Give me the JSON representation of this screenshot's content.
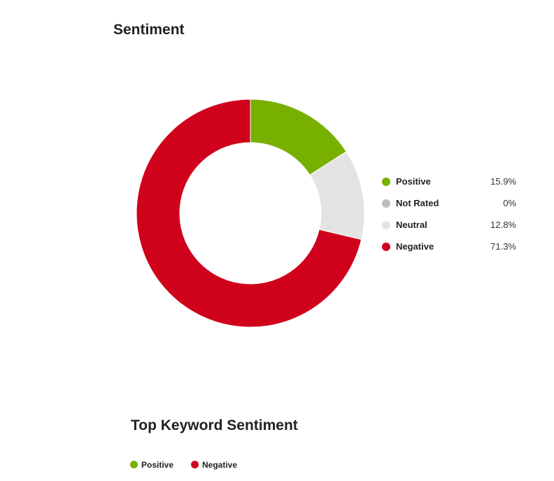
{
  "sentiment_title": "Sentiment",
  "keyword_title": "Top Keyword Sentiment",
  "chart_data": [
    {
      "type": "pie",
      "title": "Sentiment",
      "donut": true,
      "legend_position": "right",
      "slices": [
        {
          "label": "Positive",
          "value": 15.9,
          "display": "15.9%",
          "color": "#78b000"
        },
        {
          "label": "Not Rated",
          "value": 0,
          "display": "0%",
          "color": "#bdbdbd"
        },
        {
          "label": "Neutral",
          "value": 12.8,
          "display": "12.8%",
          "color": "#e3e3e3"
        },
        {
          "label": "Negative",
          "value": 71.3,
          "display": "71.3%",
          "color": "#d0021b"
        }
      ]
    },
    {
      "type": "bar",
      "title": "Top Keyword Sentiment",
      "legend_position": "top-left",
      "series": [
        {
          "name": "Positive",
          "color": "#78b000"
        },
        {
          "name": "Negative",
          "color": "#d0021b"
        }
      ]
    }
  ]
}
